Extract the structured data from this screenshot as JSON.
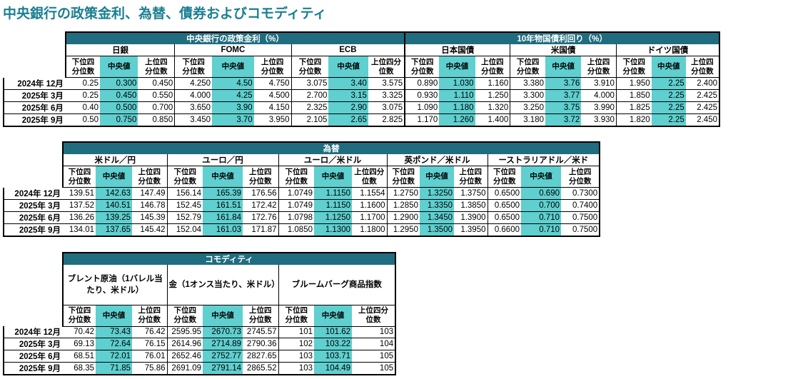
{
  "title": "中央銀行の政策金利、為替、債券およびコモディティ",
  "sub_labels": [
    "下位四分位数",
    "中央値",
    "上位四分位数"
  ],
  "rates": {
    "header_left": "中央銀行の政策金利（%）",
    "header_right": "10年物国債利回り（%）",
    "groups": [
      "日銀",
      "FOMC",
      "ECB",
      "日本国債",
      "米国債",
      "ドイツ国債"
    ],
    "sub_row": [
      [
        "下位四",
        "分位数"
      ],
      [
        "中央値"
      ],
      [
        "上位四",
        "分位数"
      ],
      [
        "下位四",
        "分位数"
      ],
      [
        "中央値"
      ],
      [
        "上位四",
        "分位数"
      ],
      [
        "下位四",
        "分位数"
      ],
      [
        "中央値"
      ],
      [
        "上位四分",
        "位数"
      ],
      [
        "下位四",
        "分位数"
      ],
      [
        "中央値"
      ],
      [
        "上位四",
        "分位数"
      ],
      [
        "下位四",
        "分位数"
      ],
      [
        "中央値"
      ],
      [
        "上位四",
        "分位数"
      ],
      [
        "下位四",
        "分位数"
      ],
      [
        "中央値"
      ],
      [
        "上位四",
        "分位数"
      ]
    ],
    "rows": [
      {
        "label": "2024年 12月",
        "values": [
          "0.25",
          "0.300",
          "0.450",
          "4.250",
          "4.50",
          "4.750",
          "3.075",
          "3.40",
          "3.575",
          "0.890",
          "1.030",
          "1.160",
          "3.380",
          "3.76",
          "3.910",
          "1.950",
          "2.25",
          "2.400"
        ]
      },
      {
        "label": "2025年 3月",
        "values": [
          "0.25",
          "0.450",
          "0.550",
          "4.000",
          "4.25",
          "4.500",
          "2.700",
          "3.15",
          "3.325",
          "0.930",
          "1.110",
          "1.250",
          "3.300",
          "3.77",
          "4.000",
          "1.850",
          "2.25",
          "2.425"
        ]
      },
      {
        "label": "2025年 6月",
        "values": [
          "0.40",
          "0.500",
          "0.700",
          "3.650",
          "3.90",
          "4.150",
          "2.325",
          "2.90",
          "3.075",
          "1.090",
          "1.180",
          "1.320",
          "3.250",
          "3.75",
          "3.990",
          "1.825",
          "2.25",
          "2.425"
        ]
      },
      {
        "label": "2025年 9月",
        "values": [
          "0.50",
          "0.750",
          "0.850",
          "3.450",
          "3.70",
          "3.950",
          "2.105",
          "2.65",
          "2.825",
          "1.170",
          "1.260",
          "1.400",
          "3.180",
          "3.72",
          "3.930",
          "1.820",
          "2.25",
          "2.450"
        ]
      }
    ]
  },
  "fx": {
    "header": "為替",
    "groups": [
      "米ドル／円",
      "ユーロ／円",
      "ユーロ／米ドル",
      "英ポンド／米ドル",
      "ーストラリアドル／米ド"
    ],
    "sub_row": [
      [
        "下位四",
        "分位数"
      ],
      [
        "中央値"
      ],
      [
        "上位四",
        "分位数"
      ],
      [
        "下位四",
        "分位数"
      ],
      [
        "中央値"
      ],
      [
        "上位四",
        "分位数"
      ],
      [
        "下位四",
        "分位数"
      ],
      [
        "中央値"
      ],
      [
        "上位四分",
        "位数"
      ],
      [
        "下位四",
        "分位数"
      ],
      [
        "中央値"
      ],
      [
        "上位四",
        "分位数"
      ],
      [
        "下位四",
        "分位数"
      ],
      [
        "中央値"
      ],
      [
        "上位四",
        "分位数"
      ]
    ],
    "rows": [
      {
        "label": "2024年 12月",
        "values": [
          "139.51",
          "142.63",
          "147.49",
          "156.14",
          "165.39",
          "176.56",
          "1.0749",
          "1.1150",
          "1.1554",
          "1.2750",
          "1.3250",
          "1.3750",
          "0.6500",
          "0.690",
          "0.7300"
        ]
      },
      {
        "label": "2025年 3月",
        "values": [
          "137.52",
          "140.51",
          "146.78",
          "152.45",
          "161.51",
          "172.42",
          "1.0749",
          "1.1150",
          "1.1600",
          "1.2850",
          "1.3350",
          "1.3850",
          "0.6500",
          "0.700",
          "0.7400"
        ]
      },
      {
        "label": "2025年 6月",
        "values": [
          "136.26",
          "139.25",
          "145.39",
          "152.79",
          "161.84",
          "172.76",
          "1.0798",
          "1.1250",
          "1.1700",
          "1.2900",
          "1.3450",
          "1.3900",
          "0.6500",
          "0.710",
          "0.7500"
        ]
      },
      {
        "label": "2025年 9月",
        "values": [
          "134.01",
          "137.65",
          "145.42",
          "152.04",
          "161.03",
          "171.87",
          "1.0850",
          "1.1300",
          "1.1800",
          "1.2950",
          "1.3500",
          "1.3950",
          "0.6600",
          "0.710",
          "0.7500"
        ]
      }
    ]
  },
  "commodity": {
    "header": "コモディティ",
    "groups": [
      "ブレント原油（1バレル当たり、米ドル）",
      "金（1オンス当たり、米ドル）",
      "ブルームバーグ商品指数"
    ],
    "sub_row": [
      [
        "下位四",
        "分位数"
      ],
      [
        "中央値"
      ],
      [
        "上位四",
        "分位数"
      ],
      [
        "下位四",
        "分位数"
      ],
      [
        "中央値"
      ],
      [
        "上位四",
        "分位数"
      ],
      [
        "下位四",
        "分位数"
      ],
      [
        "中央値"
      ],
      [
        "上位四分",
        "位数"
      ]
    ],
    "rows": [
      {
        "label": "2024年 12月",
        "values": [
          "70.42",
          "73.43",
          "76.42",
          "2595.95",
          "2670.73",
          "2745.57",
          "101",
          "101.62",
          "103"
        ]
      },
      {
        "label": "2025年 3月",
        "values": [
          "69.13",
          "72.64",
          "76.15",
          "2614.96",
          "2714.89",
          "2790.36",
          "102",
          "103.22",
          "104"
        ]
      },
      {
        "label": "2025年 6月",
        "values": [
          "68.51",
          "72.01",
          "76.01",
          "2652.46",
          "2752.77",
          "2827.65",
          "103",
          "103.71",
          "105"
        ]
      },
      {
        "label": "2025年 9月",
        "values": [
          "68.35",
          "71.85",
          "75.86",
          "2691.09",
          "2791.14",
          "2865.52",
          "103",
          "104.49",
          "105"
        ]
      }
    ]
  }
}
